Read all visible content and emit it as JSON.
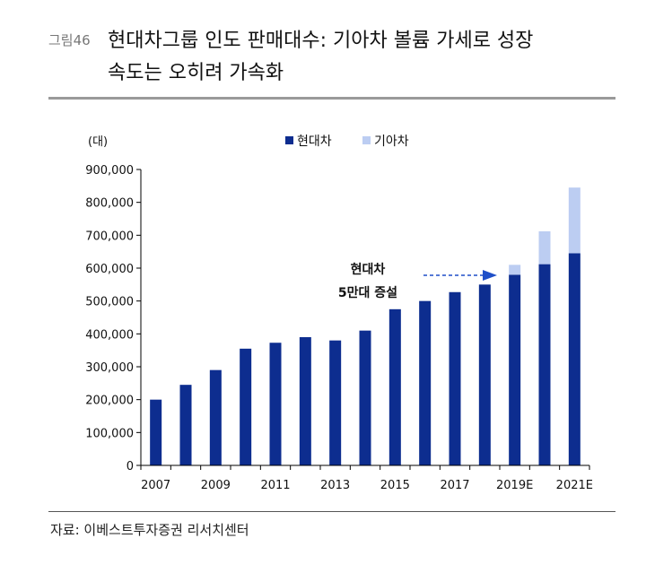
{
  "header": {
    "figure_number": "그림46",
    "title_line1": "현대차그룹 인도 판매대수: 기아차 볼륨 가세로 성장",
    "title_line2": "속도는 오히려 가속화"
  },
  "source": "자료: 이베스트투자증권 리서치센터",
  "colors": {
    "hyundai": "#0d2d8f",
    "kia": "#bccdf2",
    "arrow": "#1f4fc8"
  },
  "chart_data": {
    "type": "bar",
    "stacked": true,
    "unit_label": "(대)",
    "categories": [
      "2007",
      "2008",
      "2009",
      "2010",
      "2011",
      "2012",
      "2013",
      "2014",
      "2015",
      "2016",
      "2017",
      "2018",
      "2019E",
      "2020E",
      "2021E"
    ],
    "x_tick_labels": [
      "2007",
      "2009",
      "2011",
      "2013",
      "2015",
      "2017",
      "2019E",
      "2021E"
    ],
    "series": [
      {
        "name": "현대차",
        "values": [
          200000,
          245000,
          290000,
          355000,
          373000,
          390000,
          380000,
          410000,
          475000,
          500000,
          527000,
          550000,
          580000,
          612000,
          645000
        ]
      },
      {
        "name": "기아차",
        "values": [
          0,
          0,
          0,
          0,
          0,
          0,
          0,
          0,
          0,
          0,
          0,
          0,
          30000,
          100000,
          200000
        ]
      }
    ],
    "ylim": [
      0,
      900000
    ],
    "y_ticks": [
      0,
      100000,
      200000,
      300000,
      400000,
      500000,
      600000,
      700000,
      800000,
      900000
    ],
    "y_tick_labels": [
      "0",
      "100,000",
      "200,000",
      "300,000",
      "400,000",
      "500,000",
      "600,000",
      "700,000",
      "800,000",
      "900,000"
    ],
    "legend_position": "top",
    "annotation": {
      "line1": "현대차",
      "line2": "5만대 증설"
    }
  }
}
